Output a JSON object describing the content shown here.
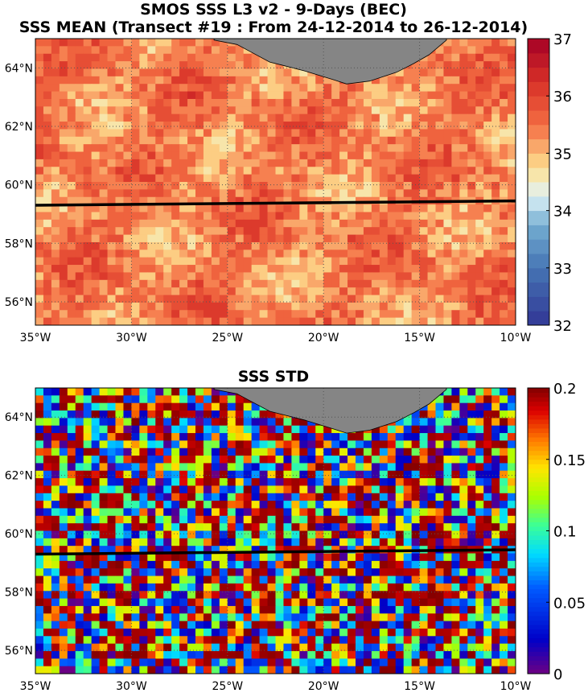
{
  "chart_data": [
    {
      "type": "heatmap",
      "title": "SMOS SSS L3 v2 - 9-Days (BEC)",
      "subtitle": "SSS MEAN (Transect #19 : From 24-12-2014 to 26-12-2014)",
      "lon_range": [
        -35,
        -10
      ],
      "lat_range": [
        55.2,
        65.0
      ],
      "x_ticks": [
        "35°W",
        "30°W",
        "25°W",
        "20°W",
        "15°W",
        "10°W"
      ],
      "x_tick_values": [
        -35,
        -30,
        -25,
        -20,
        -15,
        -10
      ],
      "y_ticks": [
        "56°N",
        "58°N",
        "60°N",
        "62°N",
        "64°N"
      ],
      "y_tick_values": [
        56,
        58,
        60,
        62,
        64
      ],
      "colorbar": {
        "range": [
          32,
          37
        ],
        "ticks": [
          "32",
          "33",
          "34",
          "35",
          "36",
          "37"
        ],
        "tick_values": [
          32,
          33,
          34,
          35,
          36,
          37
        ],
        "colormap": "diverging blue-white-red",
        "levels": 20
      },
      "typical_value": 35.4,
      "transect": {
        "lon": [
          -35,
          -10
        ],
        "lat": [
          59.3,
          59.45
        ]
      },
      "land": "Iceland (gray)",
      "grid": "dotted"
    },
    {
      "type": "heatmap",
      "title": "SSS STD",
      "lon_range": [
        -35,
        -10
      ],
      "lat_range": [
        55.2,
        65.0
      ],
      "x_ticks": [
        "35°W",
        "30°W",
        "25°W",
        "20°W",
        "15°W",
        "10°W"
      ],
      "x_tick_values": [
        -35,
        -30,
        -25,
        -20,
        -15,
        -10
      ],
      "y_ticks": [
        "56°N",
        "58°N",
        "60°N",
        "62°N",
        "64°N"
      ],
      "y_tick_values": [
        56,
        58,
        60,
        62,
        64
      ],
      "colorbar": {
        "range": [
          0,
          0.2
        ],
        "ticks": [
          "0",
          "0.05",
          "0.1",
          "0.15",
          "0.2"
        ],
        "tick_values": [
          0,
          0.05,
          0.1,
          0.15,
          0.2
        ],
        "colormap": "jet"
      },
      "transect": {
        "lon": [
          -35,
          -10
        ],
        "lat": [
          59.3,
          59.45
        ]
      },
      "land": "Iceland (gray)",
      "grid": "dotted"
    }
  ]
}
